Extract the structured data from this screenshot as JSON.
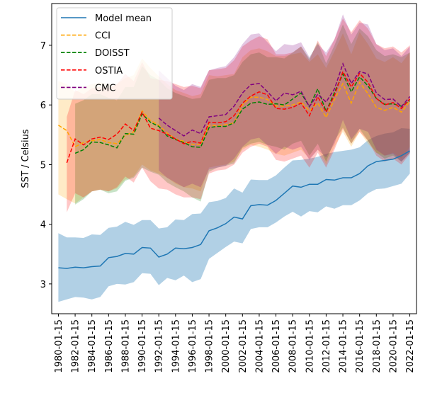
{
  "chart_data": {
    "type": "line",
    "title": "",
    "xlabel": "",
    "ylabel": "SST / Celsius",
    "ylim": [
      2.5,
      7.7
    ],
    "xlim": [
      1979.2,
      2022.8
    ],
    "yticks": [
      3,
      4,
      5,
      6,
      7
    ],
    "xtick_labels": [
      "1980-01-15",
      "1982-01-15",
      "1984-01-15",
      "1986-01-15",
      "1988-01-15",
      "1990-01-15",
      "1992-01-15",
      "1994-01-15",
      "1996-01-15",
      "1998-01-15",
      "2000-01-15",
      "2002-01-15",
      "2004-01-15",
      "2006-01-15",
      "2008-01-15",
      "2010-01-15",
      "2012-01-15",
      "2014-01-15",
      "2016-01-15",
      "2018-01-15",
      "2020-01-15",
      "2022-01-15"
    ],
    "grid": false,
    "legend_position": "top-left",
    "series": [
      {
        "name": "Model mean",
        "style": "solid",
        "color": "#1f77b4",
        "x": [
          1980,
          1981,
          1982,
          1983,
          1984,
          1985,
          1986,
          1987,
          1988,
          1989,
          1990,
          1991,
          1992,
          1993,
          1994,
          1995,
          1996,
          1997,
          1998,
          1999,
          2000,
          2001,
          2002,
          2003,
          2004,
          2005,
          2006,
          2007,
          2008,
          2009,
          2010,
          2011,
          2012,
          2013,
          2014,
          2015,
          2016,
          2017,
          2018,
          2019,
          2020,
          2021,
          2022
        ],
        "values": [
          3.27,
          3.26,
          3.28,
          3.27,
          3.29,
          3.3,
          3.44,
          3.46,
          3.51,
          3.5,
          3.61,
          3.6,
          3.45,
          3.5,
          3.6,
          3.59,
          3.61,
          3.66,
          3.89,
          3.94,
          4.01,
          4.12,
          4.09,
          4.31,
          4.33,
          4.32,
          4.4,
          4.52,
          4.64,
          4.62,
          4.67,
          4.67,
          4.75,
          4.74,
          4.78,
          4.78,
          4.85,
          4.98,
          5.05,
          5.07,
          5.09,
          5.15,
          5.23
        ],
        "lower": [
          2.7,
          2.74,
          2.78,
          2.77,
          2.74,
          2.78,
          2.96,
          3.0,
          2.99,
          3.03,
          3.18,
          3.17,
          2.98,
          3.1,
          3.06,
          3.14,
          3.03,
          3.08,
          3.42,
          3.52,
          3.62,
          3.71,
          3.68,
          3.92,
          3.95,
          3.95,
          4.03,
          4.13,
          4.21,
          4.13,
          4.22,
          4.2,
          4.3,
          4.26,
          4.32,
          4.32,
          4.4,
          4.52,
          4.59,
          4.6,
          4.64,
          4.68,
          4.85
        ],
        "upper": [
          3.85,
          3.78,
          3.78,
          3.77,
          3.83,
          3.82,
          3.94,
          3.96,
          4.04,
          3.99,
          4.07,
          4.07,
          3.93,
          3.95,
          4.08,
          4.07,
          4.17,
          4.18,
          4.37,
          4.39,
          4.44,
          4.6,
          4.53,
          4.75,
          4.74,
          4.74,
          4.82,
          4.95,
          5.07,
          5.08,
          5.1,
          5.13,
          5.18,
          5.21,
          5.23,
          5.25,
          5.29,
          5.41,
          5.48,
          5.52,
          5.54,
          5.61,
          5.6
        ]
      },
      {
        "name": "CCI",
        "style": "dashed",
        "color": "#ffa500",
        "x": [
          1980,
          1981,
          1982,
          1983,
          1984,
          1985,
          1986,
          1987,
          1988,
          1989,
          1990,
          1991,
          1992,
          1993,
          1994,
          1995,
          1996,
          1997,
          1998,
          1999,
          2000,
          2001,
          2002,
          2003,
          2004,
          2005,
          2006,
          2007,
          2008,
          2009,
          2010,
          2011,
          2012,
          2013,
          2014,
          2015,
          2016,
          2017,
          2018,
          2019,
          2020,
          2021,
          2022
        ],
        "values": [
          5.66,
          5.57,
          5.3,
          5.37,
          5.4,
          5.42,
          5.37,
          5.35,
          5.49,
          5.55,
          5.9,
          5.74,
          5.66,
          5.53,
          5.43,
          5.39,
          5.34,
          5.34,
          5.66,
          5.65,
          5.67,
          5.7,
          6.0,
          6.13,
          6.13,
          6.09,
          5.98,
          5.98,
          6.0,
          6.05,
          5.9,
          6.03,
          5.79,
          6.09,
          6.36,
          6.03,
          6.38,
          6.19,
          5.96,
          5.91,
          5.96,
          5.88,
          6.06
        ],
        "lower": [
          4.5,
          4.42,
          4.35,
          4.45,
          4.55,
          4.58,
          4.55,
          4.6,
          4.75,
          4.8,
          5.0,
          4.9,
          4.85,
          4.78,
          4.68,
          4.62,
          4.6,
          4.55,
          4.95,
          4.98,
          5.0,
          5.05,
          5.25,
          5.33,
          5.3,
          5.25,
          5.18,
          5.15,
          5.2,
          5.25,
          5.1,
          5.25,
          5.0,
          5.3,
          5.55,
          5.3,
          5.55,
          5.35,
          5.2,
          5.15,
          5.2,
          5.1,
          5.3
        ],
        "upper": [
          6.4,
          6.35,
          6.22,
          6.3,
          6.35,
          6.38,
          6.35,
          6.35,
          6.45,
          6.5,
          6.78,
          6.62,
          6.48,
          6.35,
          6.25,
          6.2,
          6.15,
          6.18,
          6.5,
          6.48,
          6.5,
          6.52,
          6.8,
          6.92,
          6.95,
          6.9,
          6.82,
          6.82,
          6.85,
          6.88,
          6.72,
          6.85,
          6.62,
          6.9,
          7.2,
          6.85,
          7.22,
          7.02,
          6.78,
          6.72,
          6.8,
          6.7,
          6.88
        ]
      },
      {
        "name": "DOISST",
        "style": "dashed",
        "color": "#008000",
        "x": [
          1982,
          1983,
          1984,
          1985,
          1986,
          1987,
          1988,
          1989,
          1990,
          1991,
          1992,
          1993,
          1994,
          1995,
          1996,
          1997,
          1998,
          1999,
          2000,
          2001,
          2002,
          2003,
          2004,
          2005,
          2006,
          2007,
          2008,
          2009,
          2010,
          2011,
          2012,
          2013,
          2014,
          2015,
          2016,
          2017,
          2018,
          2019,
          2020,
          2021,
          2022
        ],
        "values": [
          5.19,
          5.25,
          5.38,
          5.37,
          5.33,
          5.28,
          5.52,
          5.51,
          5.85,
          5.71,
          5.64,
          5.48,
          5.42,
          5.37,
          5.3,
          5.29,
          5.62,
          5.64,
          5.64,
          5.7,
          5.93,
          6.03,
          6.05,
          6.01,
          6.02,
          6.0,
          6.1,
          6.2,
          5.97,
          6.27,
          5.89,
          6.21,
          6.52,
          6.22,
          6.47,
          6.32,
          6.11,
          6.01,
          6.02,
          5.98,
          6.07
        ],
        "lower": [
          4.33,
          4.42,
          4.55,
          4.58,
          4.52,
          4.55,
          4.73,
          4.78,
          4.95,
          4.88,
          4.83,
          4.7,
          4.62,
          4.55,
          4.45,
          4.38,
          4.88,
          4.95,
          4.98,
          5.02,
          5.28,
          5.35,
          5.38,
          5.33,
          5.3,
          5.25,
          5.35,
          5.4,
          5.15,
          5.35,
          5.05,
          5.4,
          5.62,
          5.35,
          5.6,
          5.4,
          5.2,
          5.1,
          5.15,
          5.05,
          5.2
        ],
        "upper": [
          6.02,
          6.08,
          6.18,
          6.18,
          6.12,
          6.08,
          6.3,
          6.3,
          6.65,
          6.5,
          6.42,
          6.28,
          6.2,
          6.15,
          6.1,
          6.12,
          6.42,
          6.45,
          6.45,
          6.5,
          6.72,
          6.85,
          6.88,
          6.8,
          6.8,
          6.78,
          6.88,
          6.98,
          6.78,
          7.05,
          6.7,
          7.0,
          7.35,
          7.02,
          7.28,
          7.15,
          6.92,
          6.82,
          6.85,
          6.8,
          6.88
        ]
      },
      {
        "name": "OSTIA",
        "style": "dashed",
        "color": "#ff0000",
        "x": [
          1981,
          1982,
          1983,
          1984,
          1985,
          1986,
          1987,
          1988,
          1989,
          1990,
          1991,
          1992,
          1993,
          1994,
          1995,
          1996,
          1997,
          1998,
          1999,
          2000,
          2001,
          2002,
          2003,
          2004,
          2005,
          2006,
          2007,
          2008,
          2009,
          2010,
          2011,
          2012,
          2013,
          2014,
          2015,
          2016,
          2017,
          2018,
          2019,
          2020,
          2021,
          2022
        ],
        "values": [
          5.03,
          5.43,
          5.33,
          5.43,
          5.46,
          5.42,
          5.51,
          5.68,
          5.57,
          5.88,
          5.61,
          5.57,
          5.51,
          5.43,
          5.35,
          5.39,
          5.36,
          5.71,
          5.7,
          5.72,
          5.82,
          6.03,
          6.15,
          6.22,
          6.17,
          5.94,
          5.93,
          5.96,
          6.03,
          5.82,
          6.14,
          5.88,
          6.16,
          6.56,
          6.3,
          6.53,
          6.38,
          6.11,
          6.0,
          6.04,
          5.94,
          6.1
        ],
        "lower": [
          4.2,
          4.52,
          4.45,
          4.55,
          4.58,
          4.55,
          4.62,
          4.8,
          4.7,
          4.95,
          4.72,
          4.6,
          4.58,
          4.5,
          4.45,
          4.45,
          4.42,
          4.85,
          4.9,
          4.92,
          5.0,
          5.2,
          5.3,
          5.35,
          5.3,
          5.08,
          5.05,
          5.1,
          5.15,
          4.95,
          5.2,
          4.95,
          5.25,
          5.6,
          5.35,
          5.55,
          5.4,
          5.15,
          5.05,
          5.1,
          5.0,
          5.18
        ],
        "upper": [
          5.8,
          6.25,
          6.18,
          6.28,
          6.3,
          6.28,
          6.35,
          6.52,
          6.4,
          6.72,
          6.45,
          6.42,
          6.4,
          6.35,
          6.3,
          6.32,
          6.28,
          6.58,
          6.6,
          6.62,
          6.75,
          6.98,
          7.08,
          7.15,
          7.1,
          6.85,
          6.85,
          6.88,
          6.98,
          6.75,
          7.08,
          6.82,
          7.1,
          7.45,
          7.22,
          7.42,
          7.28,
          7.02,
          6.95,
          6.98,
          6.88,
          7.0
        ]
      },
      {
        "name": "CMC",
        "style": "dashed",
        "color": "#800080",
        "x": [
          1992,
          1993,
          1994,
          1995,
          1996,
          1997,
          1998,
          1999,
          2000,
          2001,
          2002,
          2003,
          2004,
          2005,
          2006,
          2007,
          2008,
          2009,
          2010,
          2011,
          2012,
          2013,
          2014,
          2015,
          2016,
          2017,
          2018,
          2019,
          2020,
          2021,
          2022
        ],
        "values": [
          5.78,
          5.66,
          5.57,
          5.48,
          5.58,
          5.52,
          5.8,
          5.82,
          5.84,
          5.98,
          6.2,
          6.34,
          6.36,
          6.22,
          6.07,
          6.2,
          6.17,
          6.23,
          5.97,
          6.18,
          6.05,
          6.27,
          6.69,
          6.36,
          6.56,
          6.52,
          6.2,
          6.09,
          6.1,
          5.97,
          6.14
        ],
        "lower": [
          4.9,
          4.78,
          4.7,
          4.62,
          4.68,
          4.62,
          4.92,
          4.95,
          4.98,
          5.1,
          5.3,
          5.42,
          5.45,
          5.32,
          5.18,
          5.3,
          5.25,
          5.3,
          5.08,
          5.25,
          5.12,
          5.35,
          5.75,
          5.42,
          5.6,
          5.55,
          5.25,
          5.15,
          5.18,
          5.05,
          5.2
        ],
        "upper": [
          6.58,
          6.45,
          6.32,
          6.25,
          6.35,
          6.3,
          6.58,
          6.62,
          6.65,
          6.8,
          7.02,
          7.18,
          7.2,
          7.05,
          6.9,
          7.02,
          7.0,
          7.05,
          6.8,
          7.02,
          6.88,
          7.1,
          7.52,
          7.18,
          7.38,
          7.35,
          7.02,
          6.92,
          6.95,
          6.82,
          6.98
        ]
      }
    ]
  }
}
